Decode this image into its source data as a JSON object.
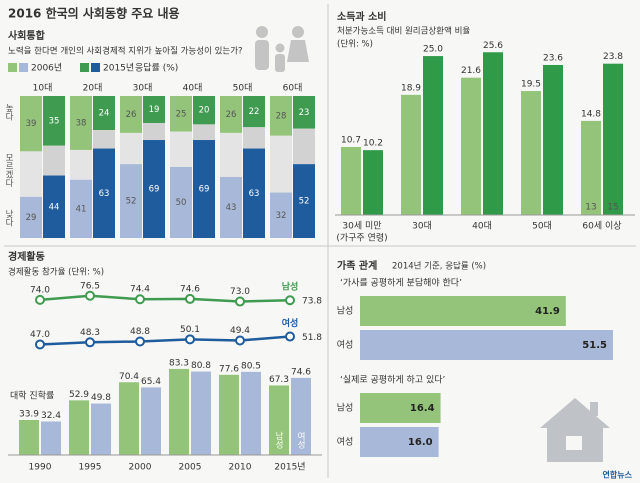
{
  "title": "2016 한국의 사회동향 주요 내용",
  "chart_data": [
    {
      "type": "stacked_bar",
      "title": "사회통합",
      "subtitle": "노력을 한다면 개인의 사회경제적 지위가 높아질 가능성이 있는가?",
      "unit": "응답률 (%)",
      "categories": [
        "10대",
        "20대",
        "30대",
        "40대",
        "50대",
        "60대"
      ],
      "segments": [
        "높다",
        "모르겠다",
        "낮다"
      ],
      "ylim": [
        0,
        100
      ],
      "series": [
        {
          "name": "2006년",
          "colors": [
            "#94c47a",
            "#e4e4e4",
            "#a8b8d8"
          ],
          "values": [
            [
              39,
              32,
              29
            ],
            [
              38,
              21,
              41
            ],
            [
              26,
              22,
              52
            ],
            [
              25,
              25,
              50
            ],
            [
              26,
              31,
              43
            ],
            [
              28,
              40,
              32
            ]
          ]
        },
        {
          "name": "2015년",
          "colors": [
            "#3e9b4f",
            "#d2d2d2",
            "#1e5c9e"
          ],
          "values": [
            [
              35,
              21,
              44
            ],
            [
              24,
              13,
              63
            ],
            [
              19,
              12,
              69
            ],
            [
              20,
              11,
              69
            ],
            [
              22,
              15,
              63
            ],
            [
              23,
              25,
              52
            ]
          ]
        }
      ]
    },
    {
      "type": "bar",
      "title": "소득과 소비",
      "subtitle": "처분가능소득 대비 원리금상환액 비율",
      "unit": "(단위: %)",
      "categories": [
        "30세 미만",
        "30대",
        "40대",
        "50대",
        "60세 이상"
      ],
      "category_note": "(가구주 연령)",
      "ylim": [
        0,
        28
      ],
      "series": [
        {
          "color": "#94c47a",
          "values": [
            10.7,
            18.9,
            21.6,
            19.5,
            14.8
          ],
          "value_labels": [
            "10.7",
            "18.9",
            "21.6",
            "19.5",
            "14.8"
          ]
        },
        {
          "color": "#2f9a48",
          "values": [
            10.2,
            25.0,
            25.6,
            23.6,
            23.8
          ],
          "value_labels": [
            "10.2",
            "25.0",
            "25.6",
            "23.6",
            "23.8"
          ]
        }
      ],
      "annotations": [
        "13",
        "15"
      ]
    },
    {
      "type": "combo",
      "title": "경제활동",
      "subtitle": "경제활동 참가율 (단위: %)",
      "categories": [
        "1990",
        "1995",
        "2000",
        "2005",
        "2010",
        "2015년"
      ],
      "ylim": [
        40,
        80
      ],
      "lines": [
        {
          "name": "남성",
          "color": "#3e9b4f",
          "values": [
            74.0,
            76.5,
            74.4,
            74.6,
            73.0,
            73.8
          ],
          "value_labels": [
            "74.0",
            "76.5",
            "74.4",
            "74.6",
            "73.0",
            "73.8"
          ]
        },
        {
          "name": "여성",
          "color": "#1e5c9e",
          "values": [
            47.0,
            48.3,
            48.8,
            50.1,
            49.4,
            51.8
          ],
          "value_labels": [
            "47.0",
            "48.3",
            "48.8",
            "50.1",
            "49.4",
            "51.8"
          ]
        }
      ],
      "bars": {
        "title": "대학 진학률",
        "ylim": [
          0,
          90
        ],
        "series": [
          {
            "name": "남성",
            "color": "#94c47a",
            "values": [
              33.9,
              52.9,
              70.4,
              83.3,
              77.6,
              67.3
            ]
          },
          {
            "name": "여성",
            "color": "#a8b8d8",
            "values": [
              32.4,
              49.8,
              65.4,
              80.8,
              80.5,
              74.6
            ]
          }
        ]
      }
    },
    {
      "type": "hbar_groups",
      "title": "가족 관계",
      "subtitle": "2014년 기준, 응답률 (%)",
      "xlim": [
        0,
        57
      ],
      "categories": [
        "남성",
        "여성"
      ],
      "colors": [
        "#94c47a",
        "#a8b8d8"
      ],
      "groups": [
        {
          "title": "‘가사를 공평하게 분담해야 한다’",
          "values": [
            41.9,
            51.5
          ]
        },
        {
          "title": "‘실제로 공평하게 하고 있다’",
          "values": [
            16.4,
            16.0
          ],
          "value_labels": [
            "16.4",
            "16.0"
          ]
        }
      ]
    }
  ],
  "credit": "연합뉴스"
}
